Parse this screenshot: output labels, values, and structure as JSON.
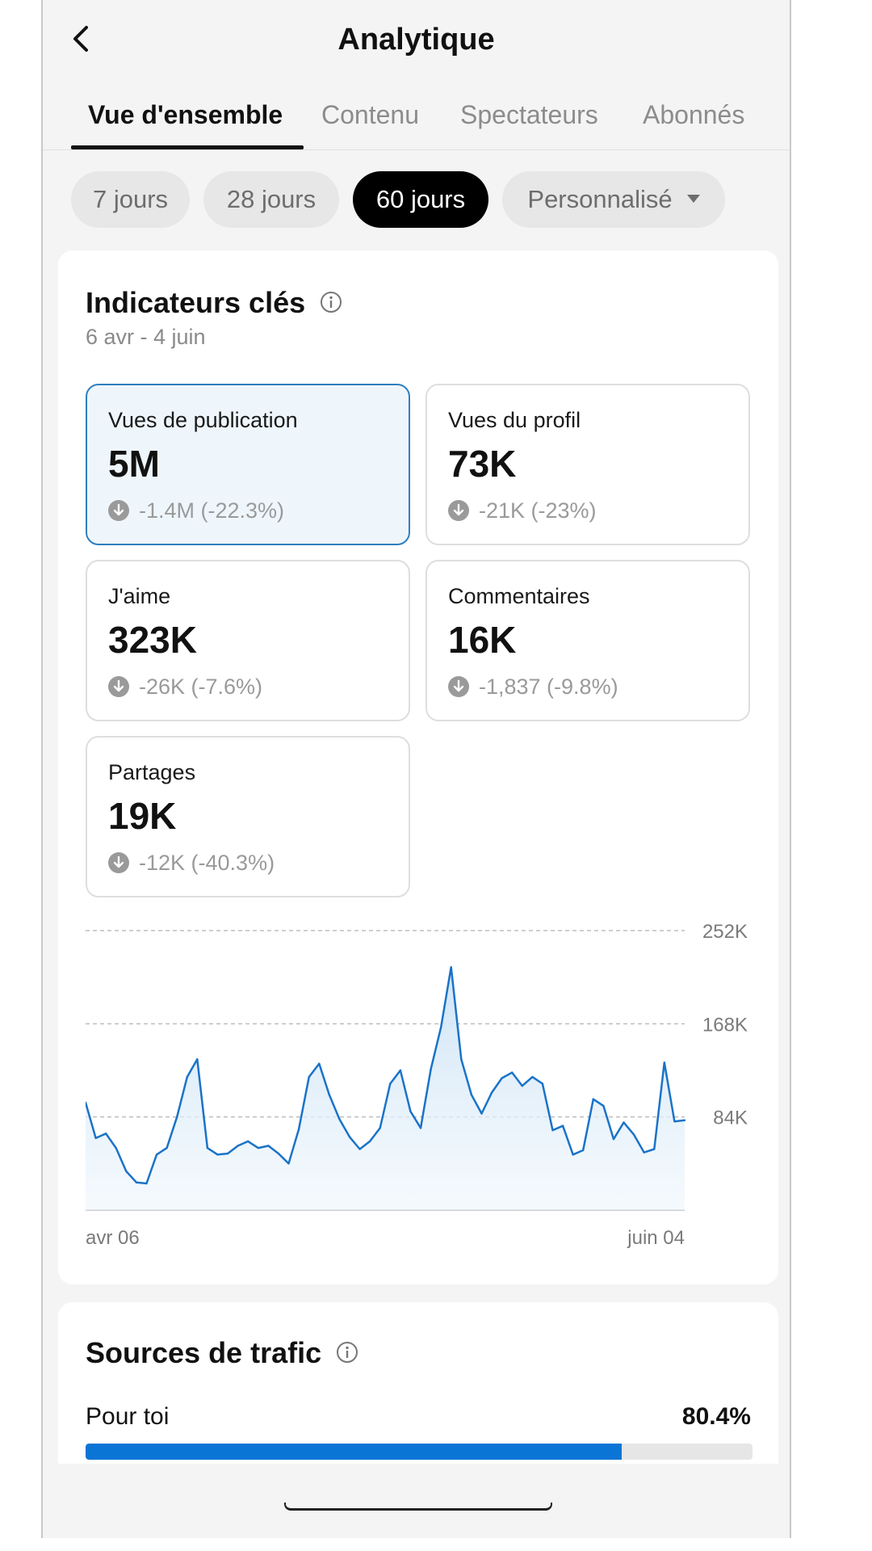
{
  "header": {
    "title": "Analytique",
    "back_icon": "chevron-left-icon"
  },
  "tabs": [
    {
      "label": "Vue d'ensemble",
      "active": true
    },
    {
      "label": "Contenu",
      "active": false
    },
    {
      "label": "Spectateurs",
      "active": false
    },
    {
      "label": "Abonnés",
      "active": false
    }
  ],
  "date_filters": [
    {
      "label": "7 jours",
      "active": false
    },
    {
      "label": "28 jours",
      "active": false
    },
    {
      "label": "60 jours",
      "active": true
    },
    {
      "label": "Personnalisé",
      "active": false,
      "icon": "caret-down-icon"
    }
  ],
  "key_metrics": {
    "title": "Indicateurs clés",
    "date_range": "6 avr - 4 juin",
    "items": [
      {
        "label": "Vues de publication",
        "value": "5M",
        "change": "-1.4M (-22.3%)",
        "selected": true
      },
      {
        "label": "Vues du profil",
        "value": "73K",
        "change": "-21K (-23%)",
        "selected": false
      },
      {
        "label": "J'aime",
        "value": "323K",
        "change": "-26K (-7.6%)",
        "selected": false
      },
      {
        "label": "Commentaires",
        "value": "16K",
        "change": "-1,837 (-9.8%)",
        "selected": false
      },
      {
        "label": "Partages",
        "value": "19K",
        "change": "-12K (-40.3%)",
        "selected": false
      }
    ]
  },
  "chart_data": {
    "type": "area",
    "title": "",
    "xlabel": "",
    "ylabel": "",
    "x_tick_labels": [
      "avr 06",
      "juin 04"
    ],
    "y_ticks": [
      84000,
      168000,
      252000
    ],
    "y_tick_labels": [
      "84K",
      "168K",
      "252K"
    ],
    "ylim": [
      0,
      252000
    ],
    "grid": true,
    "color": "#1a73c8",
    "series": [
      {
        "values": [
          97000,
          65000,
          69000,
          56000,
          35000,
          25000,
          24000,
          50000,
          56000,
          84000,
          120000,
          136000,
          56000,
          50000,
          51000,
          58000,
          62000,
          56000,
          58000,
          51000,
          42000,
          73000,
          120000,
          132000,
          104000,
          82000,
          66000,
          55000,
          62000,
          74000,
          114000,
          126000,
          89000,
          74000,
          127000,
          165000,
          219000,
          136000,
          104000,
          87000,
          106000,
          119000,
          124000,
          112000,
          120000,
          114000,
          72000,
          76000,
          50000,
          54000,
          100000,
          94000,
          64000,
          79000,
          68000,
          52000,
          55000,
          133000,
          80000,
          81000
        ]
      }
    ]
  },
  "traffic": {
    "title": "Sources de trafic",
    "items": [
      {
        "label": "Pour toi",
        "percent_text": "80.4%",
        "percent": 80.4
      }
    ]
  }
}
